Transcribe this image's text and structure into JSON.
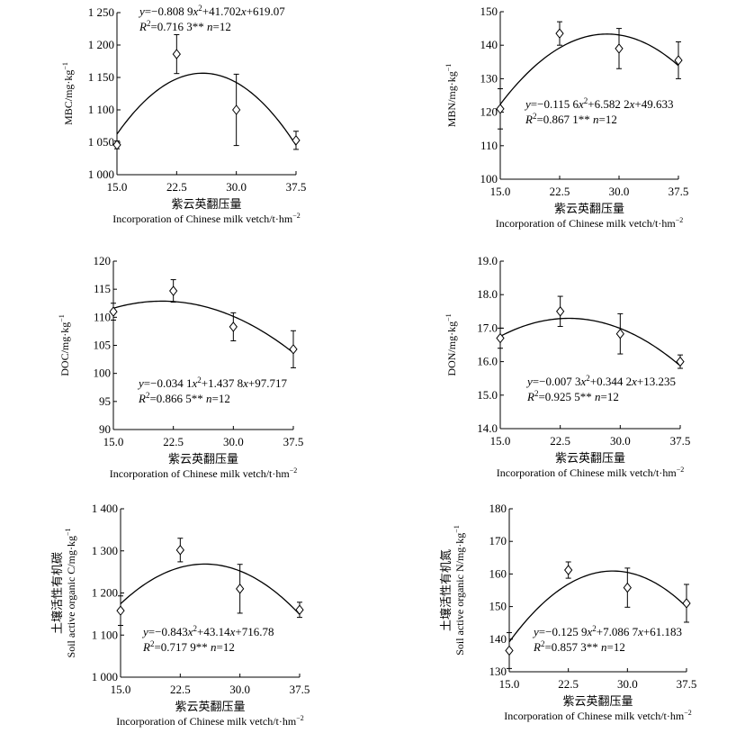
{
  "chart_data": [
    {
      "type": "scatter",
      "ylabel_parts": [
        "MBC/mg·kg",
        "−1"
      ],
      "xlabel_cn": "紫云英翻压量",
      "xlabel_en": "Incorporation of Chinese milk vetch/t·hm",
      "xlabel_en_sup": "−2",
      "xlim": [
        15.0,
        37.5
      ],
      "ylim": [
        1000,
        1250
      ],
      "x_ticks": [
        15.0,
        22.5,
        30.0,
        37.5
      ],
      "x_tick_labels": [
        "15.0",
        "22.5",
        "30.0",
        "37.5"
      ],
      "y_ticks": [
        1000,
        1050,
        1100,
        1150,
        1200,
        1250
      ],
      "y_tick_labels": [
        "1 000",
        "1 050",
        "1 100",
        "1 150",
        "1 200",
        "1 250"
      ],
      "x": [
        15.0,
        22.5,
        30.0,
        37.5
      ],
      "y": [
        1046,
        1186,
        1100,
        1053
      ],
      "err": [
        6,
        30,
        55,
        14
      ],
      "fit": {
        "a": -0.8089,
        "b": 41.702,
        "c": 619.07
      },
      "eq_parts": [
        "y",
        "=−0.808 9",
        "x",
        "2",
        "+41.702",
        "x",
        "+619.07"
      ],
      "r2_parts": [
        "R",
        "2",
        "=0.716 3**  ",
        "n",
        "=12"
      ],
      "eq_pos": "top-left"
    },
    {
      "type": "scatter",
      "ylabel_parts": [
        "MBN/mg·kg",
        "−1"
      ],
      "xlabel_cn": "紫云英翻压量",
      "xlabel_en": "Incorporation of Chinese milk vetch/t·hm",
      "xlabel_en_sup": "−2",
      "xlim": [
        15.0,
        37.5
      ],
      "ylim": [
        100,
        150
      ],
      "x_ticks": [
        15.0,
        22.5,
        30.0,
        37.5
      ],
      "x_tick_labels": [
        "15.0",
        "22.5",
        "30.0",
        "37.5"
      ],
      "y_ticks": [
        100,
        110,
        120,
        130,
        140,
        150
      ],
      "y_tick_labels": [
        "100",
        "110",
        "120",
        "130",
        "140",
        "150"
      ],
      "x": [
        15.0,
        22.5,
        30.0,
        37.5
      ],
      "y": [
        121,
        143.5,
        139,
        135.5
      ],
      "err": [
        6,
        3.5,
        6,
        5.5
      ],
      "fit": {
        "a": -0.1156,
        "b": 6.5822,
        "c": 49.633
      },
      "eq_parts": [
        "y",
        "=−0.115 6",
        "x",
        "2",
        "+6.582 2",
        "x",
        "+49.633"
      ],
      "r2_parts": [
        "R",
        "2",
        "=0.867 1**  ",
        "n",
        "=12"
      ],
      "eq_pos": "middle-left"
    },
    {
      "type": "scatter",
      "ylabel_parts": [
        "DOC/mg·kg",
        "−1"
      ],
      "xlabel_cn": "紫云英翻压量",
      "xlabel_en": "Incorporation of Chinese milk vetch/t·hm",
      "xlabel_en_sup": "−2",
      "xlim": [
        15.0,
        37.5
      ],
      "ylim": [
        90,
        120
      ],
      "x_ticks": [
        15.0,
        22.5,
        30.0,
        37.5
      ],
      "x_tick_labels": [
        "15.0",
        "22.5",
        "30.0",
        "37.5"
      ],
      "y_ticks": [
        90,
        95,
        100,
        105,
        110,
        115,
        120
      ],
      "y_tick_labels": [
        "90",
        "95",
        "100",
        "105",
        "110",
        "115",
        "120"
      ],
      "x": [
        15.0,
        22.5,
        30.0,
        37.5
      ],
      "y": [
        111,
        114.7,
        108.3,
        104.3
      ],
      "err": [
        1.5,
        2,
        2.5,
        3.3
      ],
      "fit": {
        "a": -0.0341,
        "b": 1.4378,
        "c": 97.717
      },
      "eq_parts": [
        "y",
        "=−0.034 1",
        "x",
        "2",
        "+1.437 8",
        "x",
        "+97.717"
      ],
      "r2_parts": [
        "R",
        "2",
        "=0.866 5**  ",
        "n",
        "=12"
      ],
      "eq_pos": "bottom-left"
    },
    {
      "type": "scatter",
      "ylabel_parts": [
        "DON/mg·kg",
        "−1"
      ],
      "xlabel_cn": "紫云英翻压量",
      "xlabel_en": "Incorporation of Chinese milk vetch/t·hm",
      "xlabel_en_sup": "−2",
      "xlim": [
        15.0,
        37.5
      ],
      "ylim": [
        14.0,
        19.0
      ],
      "x_ticks": [
        15.0,
        22.5,
        30.0,
        37.5
      ],
      "x_tick_labels": [
        "15.0",
        "22.5",
        "30.0",
        "37.5"
      ],
      "y_ticks": [
        14,
        15,
        16,
        17,
        18,
        19
      ],
      "y_tick_labels": [
        "14.0",
        "15.0",
        "16.0",
        "17.0",
        "18.0",
        "19.0"
      ],
      "x": [
        15.0,
        22.5,
        30.0,
        37.5
      ],
      "y": [
        16.7,
        17.5,
        16.83,
        16.0
      ],
      "err": [
        0.3,
        0.45,
        0.6,
        0.2
      ],
      "fit": {
        "a": -0.0073,
        "b": 0.3442,
        "c": 13.235
      },
      "eq_parts": [
        "y",
        "=−0.007 3",
        "x",
        "2",
        "+0.344 2",
        "x",
        "+13.235"
      ],
      "r2_parts": [
        "R",
        "2",
        "=0.925 5**  ",
        "n",
        "=12"
      ],
      "eq_pos": "bottom-left"
    },
    {
      "type": "scatter",
      "ylabel_parts": [
        "Soil active organic C/mg·kg",
        "−1"
      ],
      "ylabel_cn": "土壤活性有机碳",
      "xlabel_cn": "紫云英翻压量",
      "xlabel_en": "Incorporation of Chinese milk vetch/t·hm",
      "xlabel_en_sup": "−2",
      "xlim": [
        15.0,
        37.5
      ],
      "ylim": [
        1000,
        1400
      ],
      "x_ticks": [
        15.0,
        22.5,
        30.0,
        37.5
      ],
      "x_tick_labels": [
        "15.0",
        "22.5",
        "30.0",
        "37.5"
      ],
      "y_ticks": [
        1000,
        1100,
        1200,
        1300,
        1400
      ],
      "y_tick_labels": [
        "1 000",
        "1 100",
        "1 200",
        "1 300",
        "1 400"
      ],
      "x": [
        15.0,
        22.5,
        30.0,
        37.5
      ],
      "y": [
        1158,
        1302,
        1210,
        1160
      ],
      "err": [
        35,
        28,
        58,
        18
      ],
      "fit": {
        "a": -0.843,
        "b": 43.14,
        "c": 716.78
      },
      "eq_parts": [
        "y",
        "=−0.843",
        "x",
        "2",
        "+43.14",
        "x",
        "+716.78"
      ],
      "r2_parts": [
        "R",
        "2",
        "=0.717 9**  ",
        "n",
        "=12"
      ],
      "eq_pos": "bottom-left"
    },
    {
      "type": "scatter",
      "ylabel_parts": [
        "Soil active organic N/mg·kg",
        "−1"
      ],
      "ylabel_cn": "土壤活性有机氮",
      "xlabel_cn": "紫云英翻压量",
      "xlabel_en": "Incorporation of Chinese milk vetch/t·hm",
      "xlabel_en_sup": "−2",
      "xlim": [
        15.0,
        37.5
      ],
      "ylim": [
        130,
        180
      ],
      "x_ticks": [
        15.0,
        22.5,
        30.0,
        37.5
      ],
      "x_tick_labels": [
        "15.0",
        "22.5",
        "30.0",
        "37.5"
      ],
      "y_ticks": [
        130,
        140,
        150,
        160,
        170,
        180
      ],
      "y_tick_labels": [
        "130",
        "140",
        "150",
        "160",
        "170",
        "180"
      ],
      "x": [
        15.0,
        22.5,
        30.0,
        37.5
      ],
      "y": [
        136.5,
        161.2,
        155.8,
        151
      ],
      "err": [
        5.5,
        2.5,
        6,
        5.8
      ],
      "fit": {
        "a": -0.1259,
        "b": 7.0867,
        "c": 61.183
      },
      "eq_parts": [
        "y",
        "=−0.125 9",
        "x",
        "2",
        "+7.086 7",
        "x",
        "+61.183"
      ],
      "r2_parts": [
        "R",
        "2",
        "=0.857 3**  ",
        "n",
        "=12"
      ],
      "eq_pos": "bottom-left"
    }
  ]
}
